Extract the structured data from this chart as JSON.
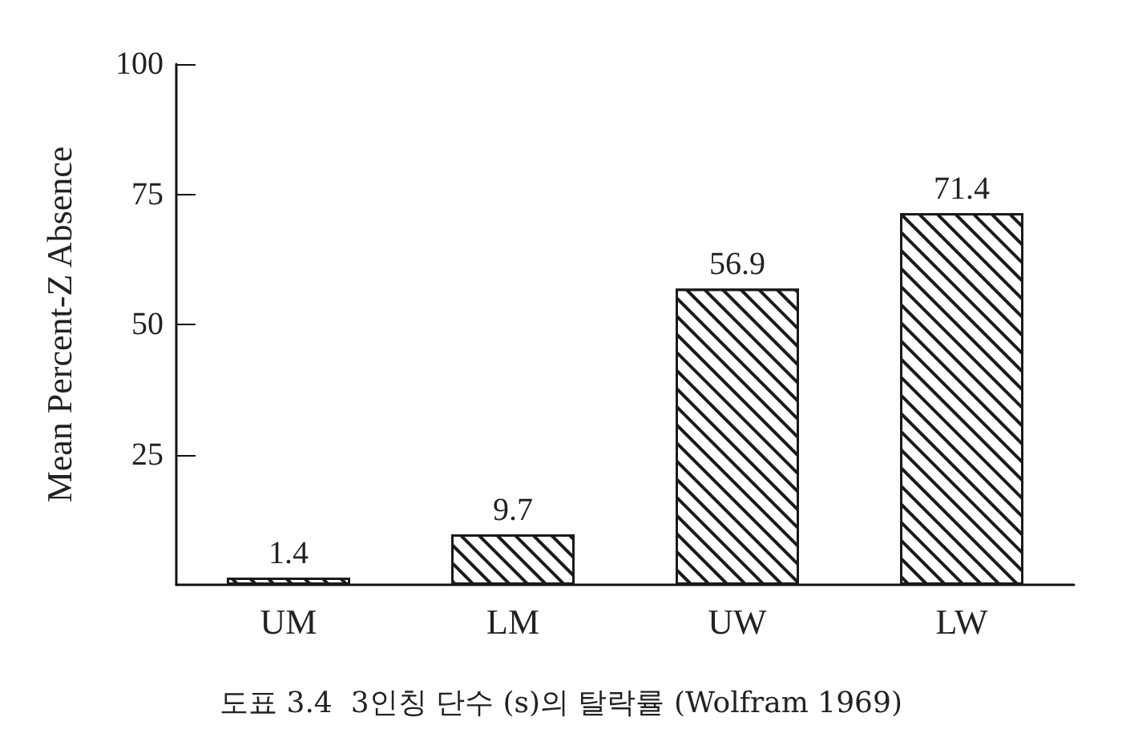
{
  "chart_data": {
    "type": "bar",
    "ylabel": "Mean Percent-Z Absence",
    "annotations": [
      "도표 3.4  3인칭 단수 (s)의 탈락률 (Wolfram 1969)"
    ],
    "categories": [
      "UM",
      "LM",
      "UW",
      "LW"
    ],
    "values": [
      1.4,
      9.7,
      56.9,
      71.4
    ],
    "color": "#1a1a1a",
    "ylim": [
      0,
      100
    ],
    "yticks": [
      25,
      50,
      75,
      100
    ],
    "grid": false,
    "data_labels": true
  }
}
